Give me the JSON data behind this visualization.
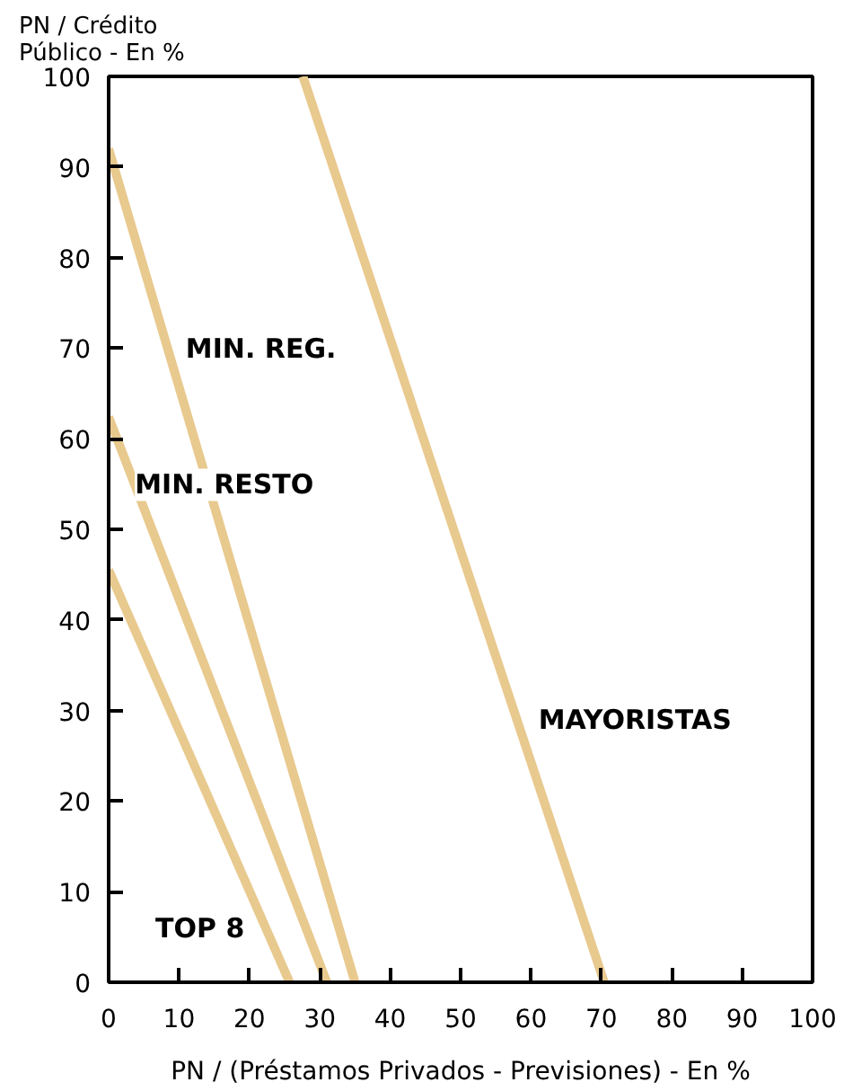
{
  "chart_data": {
    "type": "line",
    "ylabel": "PN /  Crédito\nPúblico  - En %",
    "xlabel": "PN / (Préstamos Privados - Previsiones) - En %",
    "xlim": [
      0,
      100
    ],
    "ylim": [
      0,
      100
    ],
    "xticks": [
      0,
      10,
      20,
      30,
      40,
      50,
      60,
      70,
      80,
      90,
      100
    ],
    "yticks": [
      0,
      10,
      20,
      30,
      40,
      50,
      60,
      70,
      80,
      90,
      100
    ],
    "grid": false,
    "legend": false,
    "marker": "none",
    "line_style": "solid",
    "series": [
      {
        "name": "TOP 8",
        "color": "#e8c98e",
        "x": [
          0,
          25.7
        ],
        "values": [
          45.5,
          0
        ]
      },
      {
        "name": "MIN. RESTO",
        "color": "#e8c98e",
        "x": [
          0,
          31.0
        ],
        "values": [
          62.4,
          0
        ]
      },
      {
        "name": "MIN. REG.",
        "color": "#e8c98e",
        "x": [
          0,
          35.0
        ],
        "values": [
          92,
          0
        ]
      },
      {
        "name": "MAYORISTAS",
        "color": "#e8c98e",
        "x": [
          27.6,
          70.4
        ],
        "values": [
          100,
          0
        ]
      }
    ]
  }
}
